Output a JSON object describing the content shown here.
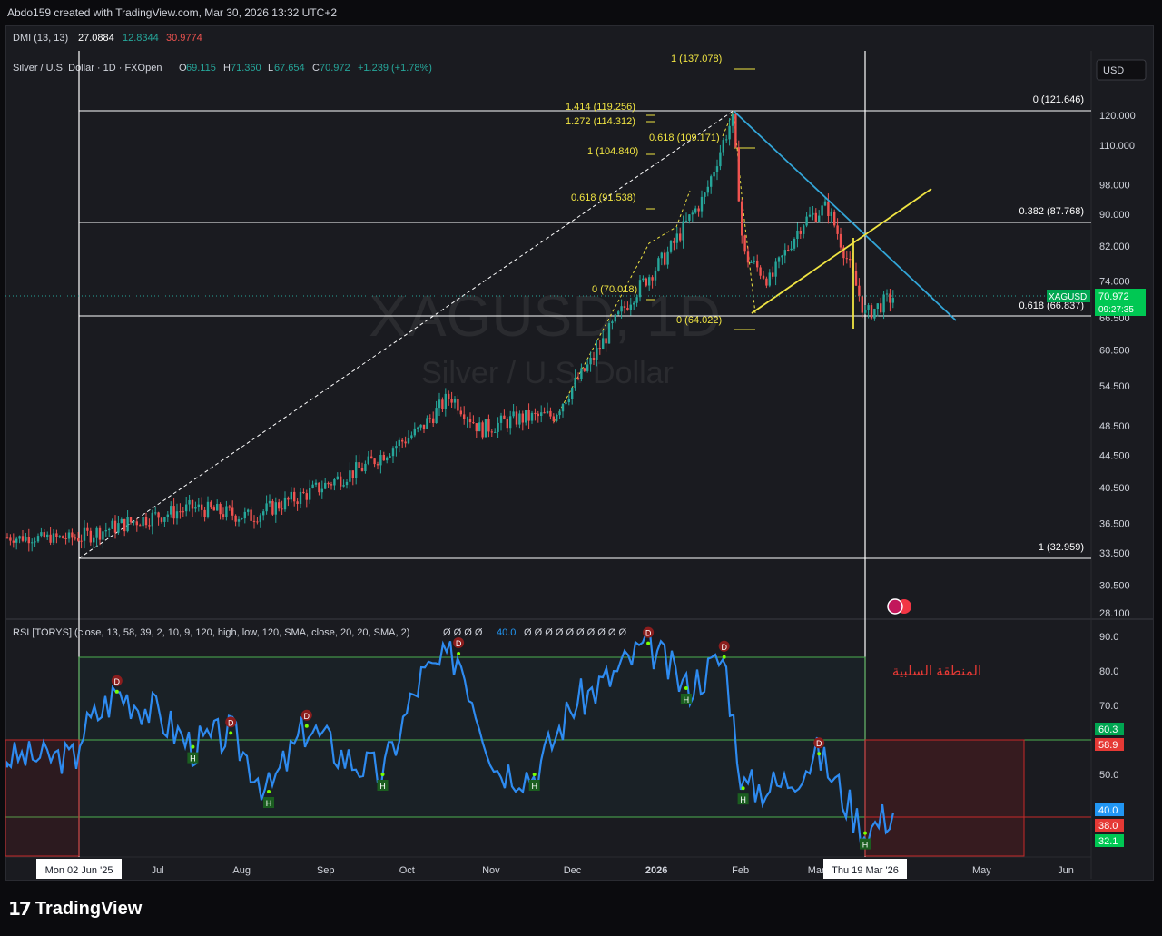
{
  "header": {
    "credit": "Abdo159 created with TradingView.com, Mar 30, 2026 13:32 UTC+2"
  },
  "dmi": {
    "label": "DMI (13, 13)",
    "adx": "27.0884",
    "plus_di": "12.8344",
    "minus_di": "30.9774"
  },
  "symbol": {
    "name": "Silver / U.S. Dollar · 1D · FXOpen",
    "o_label": "O",
    "o": "69.115",
    "h_label": "H",
    "h": "71.360",
    "l_label": "L",
    "l": "67.654",
    "c_label": "C",
    "c": "70.972",
    "change": "+1.239 (+1.78%)"
  },
  "watermark": {
    "ticker": "XAGUSD, 1D",
    "desc": "Silver / U.S. Dollar"
  },
  "currency_button": "USD",
  "price_tag": {
    "ticker": "XAGUSD",
    "price": "70.972",
    "countdown": "09:27:35"
  },
  "fib_main": [
    "0 (121.646)",
    "0.382 (87.768)",
    "0.618 (66.837)",
    "1 (32.959)"
  ],
  "fib_ext": [
    "1 (137.078)",
    "1.414 (119.256)",
    "1.272 (114.312)",
    "0.618 (109.171)",
    "1 (104.840)",
    "0.618 (91.538)",
    "0 (70.018)",
    "0 (64.022)"
  ],
  "rsi": {
    "label": "RSI [TORYS] (close, 13, 58, 39, 2, 10, 9, 120, high, low, 120, SMA, close, 20, 20, SMA, 2)",
    "dots": "Ø Ø Ø Ø",
    "value": "40.0",
    "dots2": "Ø Ø Ø Ø Ø Ø Ø Ø Ø Ø",
    "arabic_note": "المنطقة السلبية"
  },
  "rsi_tags": {
    "upper": "60.3",
    "mid": "58.9",
    "value": "40.0",
    "lower": "38.0",
    "low": "32.1"
  },
  "xaxis_tags": {
    "left": "Mon 02 Jun '25",
    "right": "Thu 19 Mar '26"
  },
  "branding": {
    "mark": "17",
    "word": "TradingView"
  },
  "chart_data": [
    {
      "type": "candlestick",
      "title": "Silver / U.S. Dollar · 1D · FXOpen",
      "y_axis_labels": [
        "120.000",
        "110.000",
        "98.000",
        "90.000",
        "82.000",
        "74.000",
        "66.500",
        "60.500",
        "54.500",
        "48.500",
        "44.500",
        "40.500",
        "36.500",
        "33.500",
        "30.500",
        "28.100"
      ],
      "x_axis_labels": [
        "Jul",
        "Aug",
        "Sep",
        "Oct",
        "Nov",
        "Dec",
        "2026",
        "Feb",
        "Mar",
        "May",
        "Jun"
      ],
      "scale": "log",
      "x": [
        "2025-06-02",
        "2025-06-23",
        "2025-07-14",
        "2025-08-04",
        "2025-08-25",
        "2025-09-15",
        "2025-10-06",
        "2025-10-17",
        "2025-10-28",
        "2025-11-10",
        "2025-11-24",
        "2025-12-08",
        "2025-12-22",
        "2026-01-05",
        "2026-01-19",
        "2026-01-29",
        "2026-02-02",
        "2026-02-12",
        "2026-02-24",
        "2026-03-05",
        "2026-03-19",
        "2026-03-30"
      ],
      "close": [
        35.0,
        36.8,
        38.2,
        37.2,
        39.8,
        43.0,
        48.0,
        53.0,
        48.0,
        49.5,
        50.0,
        58.5,
        70.0,
        80.0,
        95.0,
        119.0,
        80.0,
        74.0,
        88.0,
        92.0,
        67.0,
        70.972
      ],
      "last": {
        "open": 69.115,
        "high": 71.36,
        "low": 67.654,
        "close": 70.972
      }
    },
    {
      "type": "line",
      "title": "RSI [TORYS]",
      "y_axis_labels": [
        "90.0",
        "80.0",
        "70.0",
        "50.0"
      ],
      "x": [
        "2025-06-02",
        "2025-06-16",
        "2025-06-30",
        "2025-07-14",
        "2025-07-28",
        "2025-08-11",
        "2025-08-25",
        "2025-09-08",
        "2025-09-22",
        "2025-10-06",
        "2025-10-20",
        "2025-11-03",
        "2025-11-17",
        "2025-12-01",
        "2025-12-15",
        "2025-12-29",
        "2026-01-12",
        "2026-01-26",
        "2026-02-02",
        "2026-02-16",
        "2026-03-02",
        "2026-03-19",
        "2026-03-30"
      ],
      "series": [
        {
          "values": [
            61,
            74,
            68,
            58,
            62,
            45,
            64,
            55,
            50,
            78,
            85,
            52,
            50,
            70,
            78,
            88,
            75,
            84,
            46,
            47,
            56,
            33,
            40
          ]
        }
      ],
      "levels": {
        "upper": 60.3,
        "mid": 58.9,
        "lower": 38.0
      }
    }
  ]
}
